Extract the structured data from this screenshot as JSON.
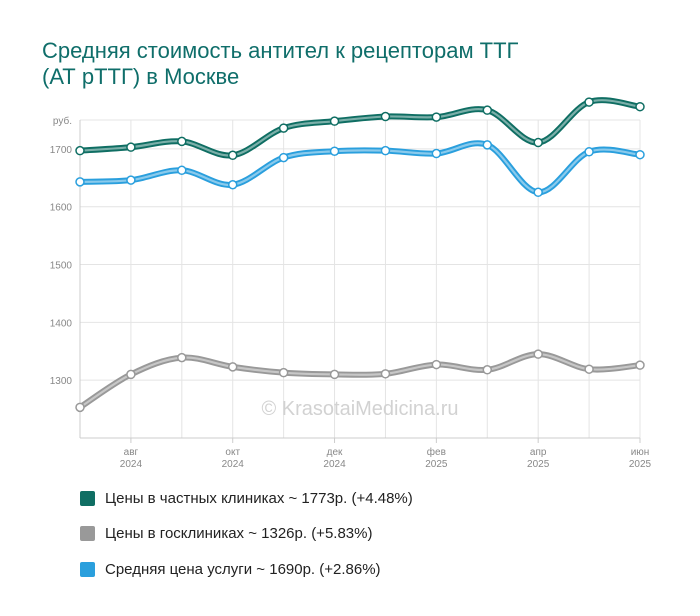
{
  "chart_data": {
    "type": "line",
    "title": [
      "Средняя стоимость антител к рецепторам ТТГ",
      "(АТ рТТГ) в Москве"
    ],
    "y_unit": "руб.",
    "ylim": [
      1200,
      1750
    ],
    "y_ticks": [
      1300,
      1400,
      1500,
      1600,
      1700
    ],
    "x": [
      "2024-07",
      "2024-08",
      "2024-09",
      "2024-10",
      "2024-11",
      "2024-12",
      "2025-01",
      "2025-02",
      "2025-03",
      "2025-04",
      "2025-05",
      "2025-06"
    ],
    "x_tick_labels": [
      {
        "month": "авг",
        "year": "2024",
        "at": 1
      },
      {
        "month": "окт",
        "year": "2024",
        "at": 3
      },
      {
        "month": "дек",
        "year": "2024",
        "at": 5
      },
      {
        "month": "фев",
        "year": "2025",
        "at": 7
      },
      {
        "month": "апр",
        "year": "2025",
        "at": 9
      },
      {
        "month": "июн",
        "year": "2025",
        "at": 11
      }
    ],
    "grid": true,
    "legend_position": "bottom",
    "watermark": "© KrasotaiMedicina.ru",
    "series": [
      {
        "name": "Цены в частных клиниках ~ 1773р. (+4.48%)",
        "color": "#0f6e63",
        "values": [
          1697,
          1703,
          1713,
          1689,
          1736,
          1748,
          1756,
          1755,
          1767,
          1711,
          1781,
          1773
        ]
      },
      {
        "name": "Цены в госклиниках ~ 1326р. (+5.83%)",
        "color": "#999999",
        "values": [
          1253,
          1310,
          1339,
          1323,
          1313,
          1310,
          1311,
          1327,
          1318,
          1345,
          1319,
          1326
        ]
      },
      {
        "name": "Средняя цена услуги ~ 1690р. (+2.86%)",
        "color": "#2a9fdd",
        "values": [
          1643,
          1646,
          1663,
          1638,
          1685,
          1696,
          1697,
          1692,
          1707,
          1625,
          1695,
          1690
        ]
      }
    ]
  }
}
